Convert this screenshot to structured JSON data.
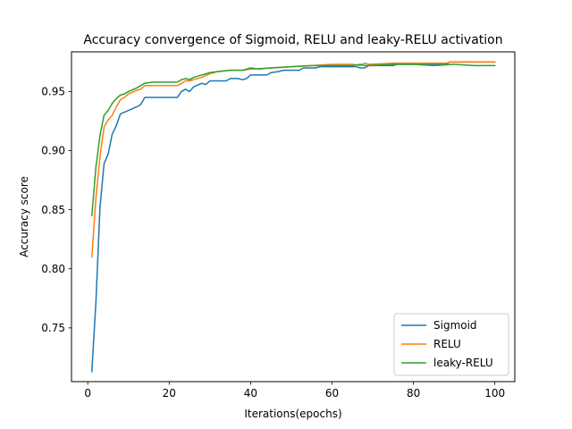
{
  "chart_data": {
    "type": "line",
    "title": "Accuracy convergence of Sigmoid, RELU and leaky-RELU activation",
    "xlabel": "Iterations(epochs)",
    "ylabel": "Accuracy score",
    "xlim": [
      -4.0,
      104.9
    ],
    "ylim": [
      0.7045,
      0.9836
    ],
    "xticks": [
      0,
      20,
      40,
      60,
      80,
      100
    ],
    "yticks": [
      0.75,
      0.8,
      0.85,
      0.9,
      0.95
    ],
    "ytick_labels": [
      "0.75",
      "0.80",
      "0.85",
      "0.90",
      "0.95"
    ],
    "grid": false,
    "legend_position": "lower-right",
    "series": [
      {
        "name": "Sigmoid",
        "color": "#1f77b4",
        "points": [
          [
            1,
            0.713
          ],
          [
            2,
            0.772
          ],
          [
            3,
            0.852
          ],
          [
            4,
            0.889
          ],
          [
            5,
            0.897
          ],
          [
            6,
            0.914
          ],
          [
            7,
            0.921
          ],
          [
            8,
            0.931
          ],
          [
            10,
            0.934
          ],
          [
            12,
            0.937
          ],
          [
            13,
            0.939
          ],
          [
            14,
            0.945
          ],
          [
            16,
            0.945
          ],
          [
            20,
            0.945
          ],
          [
            22,
            0.945
          ],
          [
            23,
            0.95
          ],
          [
            24,
            0.952
          ],
          [
            25,
            0.95
          ],
          [
            26,
            0.954
          ],
          [
            28,
            0.957
          ],
          [
            29,
            0.956
          ],
          [
            30,
            0.959
          ],
          [
            34,
            0.959
          ],
          [
            35,
            0.961
          ],
          [
            37,
            0.961
          ],
          [
            38,
            0.96
          ],
          [
            39,
            0.961
          ],
          [
            40,
            0.964
          ],
          [
            44,
            0.964
          ],
          [
            45,
            0.966
          ],
          [
            47,
            0.967
          ],
          [
            48,
            0.968
          ],
          [
            52,
            0.968
          ],
          [
            53,
            0.97
          ],
          [
            56,
            0.97
          ],
          [
            57,
            0.971
          ],
          [
            66,
            0.971
          ],
          [
            67,
            0.97
          ],
          [
            68,
            0.97
          ],
          [
            69,
            0.972
          ],
          [
            75,
            0.972
          ],
          [
            76,
            0.973
          ],
          [
            88,
            0.973
          ],
          [
            89,
            0.975
          ],
          [
            100,
            0.975
          ]
        ]
      },
      {
        "name": "RELU",
        "color": "#ff7f0e",
        "points": [
          [
            1,
            0.81
          ],
          [
            2,
            0.86
          ],
          [
            3,
            0.895
          ],
          [
            4,
            0.92
          ],
          [
            5,
            0.926
          ],
          [
            6,
            0.93
          ],
          [
            7,
            0.937
          ],
          [
            8,
            0.943
          ],
          [
            9,
            0.945
          ],
          [
            10,
            0.948
          ],
          [
            12,
            0.951
          ],
          [
            13,
            0.952
          ],
          [
            14,
            0.955
          ],
          [
            20,
            0.955
          ],
          [
            22,
            0.955
          ],
          [
            23,
            0.957
          ],
          [
            24,
            0.959
          ],
          [
            25,
            0.959
          ],
          [
            26,
            0.96
          ],
          [
            28,
            0.962
          ],
          [
            30,
            0.965
          ],
          [
            32,
            0.967
          ],
          [
            35,
            0.968
          ],
          [
            38,
            0.968
          ],
          [
            40,
            0.969
          ],
          [
            45,
            0.97
          ],
          [
            50,
            0.971
          ],
          [
            55,
            0.972
          ],
          [
            60,
            0.973
          ],
          [
            65,
            0.973
          ],
          [
            67,
            0.972
          ],
          [
            68,
            0.974
          ],
          [
            69,
            0.973
          ],
          [
            75,
            0.974
          ],
          [
            80,
            0.974
          ],
          [
            85,
            0.974
          ],
          [
            88,
            0.974
          ],
          [
            89,
            0.975
          ],
          [
            100,
            0.975
          ]
        ]
      },
      {
        "name": "leaky-RELU",
        "color": "#2ca02c",
        "points": [
          [
            1,
            0.845
          ],
          [
            2,
            0.886
          ],
          [
            3,
            0.913
          ],
          [
            4,
            0.93
          ],
          [
            5,
            0.934
          ],
          [
            6,
            0.94
          ],
          [
            7,
            0.944
          ],
          [
            8,
            0.947
          ],
          [
            9,
            0.948
          ],
          [
            10,
            0.95
          ],
          [
            12,
            0.953
          ],
          [
            13,
            0.955
          ],
          [
            14,
            0.957
          ],
          [
            16,
            0.958
          ],
          [
            20,
            0.958
          ],
          [
            22,
            0.958
          ],
          [
            23,
            0.96
          ],
          [
            24,
            0.961
          ],
          [
            25,
            0.96
          ],
          [
            26,
            0.962
          ],
          [
            28,
            0.964
          ],
          [
            30,
            0.966
          ],
          [
            32,
            0.967
          ],
          [
            35,
            0.968
          ],
          [
            38,
            0.968
          ],
          [
            40,
            0.97
          ],
          [
            42,
            0.969
          ],
          [
            45,
            0.97
          ],
          [
            50,
            0.971
          ],
          [
            55,
            0.972
          ],
          [
            60,
            0.972
          ],
          [
            65,
            0.972
          ],
          [
            67,
            0.973
          ],
          [
            68,
            0.972
          ],
          [
            69,
            0.972
          ],
          [
            75,
            0.973
          ],
          [
            80,
            0.973
          ],
          [
            85,
            0.972
          ],
          [
            90,
            0.973
          ],
          [
            95,
            0.972
          ],
          [
            100,
            0.972
          ]
        ]
      }
    ]
  }
}
